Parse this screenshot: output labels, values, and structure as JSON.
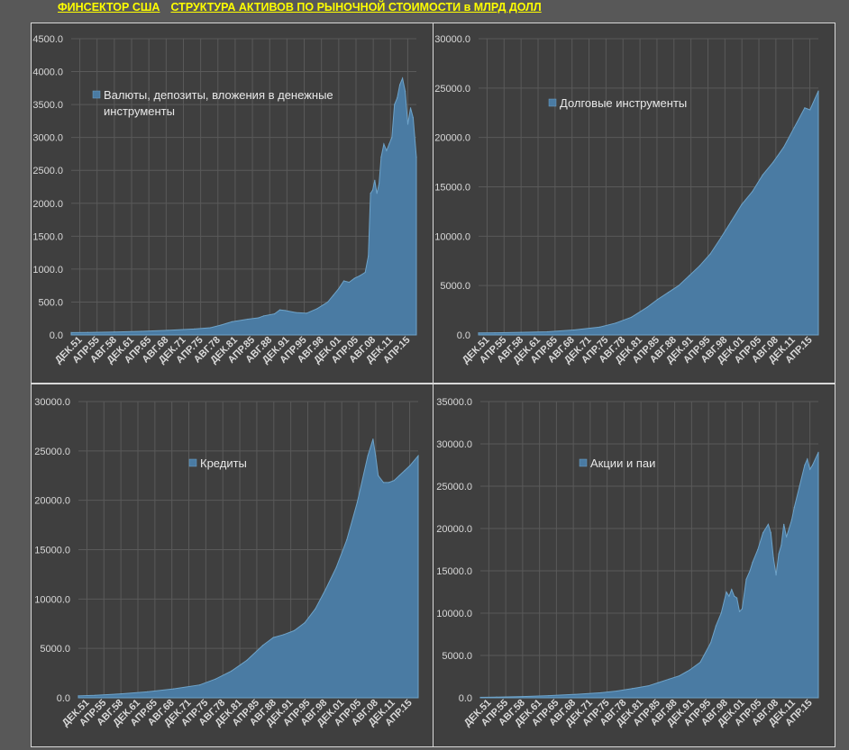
{
  "header": {
    "title_left": "ФИНСЕКТОР США",
    "title_right": "СТРУКТУРА АКТИВОВ ПО РЫНОЧНОЙ СТОИМОСТИ в МЛРД ДОЛЛ"
  },
  "colors": {
    "area": "#4a7ba3",
    "area_edge": "#6ea3c9",
    "grid": "#5a5a5a",
    "panel_bg": "#3f3f3f"
  },
  "chart_data": [
    {
      "type": "area",
      "legend": [
        "Валюты, депозиты, вложения в денежные",
        "инструменты"
      ],
      "ylim": [
        0,
        4500
      ],
      "yticks": [
        "0.0",
        "500.0",
        "1000.0",
        "1500.0",
        "2000.0",
        "2500.0",
        "3000.0",
        "3500.0",
        "4000.0",
        "4500.0"
      ],
      "xticks": [
        "ДЕК.51",
        "АПР.55",
        "АВГ.58",
        "ДЕК.61",
        "АПР.65",
        "АВГ.68",
        "ДЕК.71",
        "АПР.75",
        "АВГ.78",
        "ДЕК.81",
        "АПР.85",
        "АВГ.88",
        "ДЕК.91",
        "АПР.95",
        "АВГ.98",
        "ДЕК.01",
        "АПР.05",
        "АВГ.08",
        "ДЕК.11",
        "АПР.15"
      ],
      "x": [
        1951.9,
        1955,
        1960,
        1965,
        1970,
        1975,
        1978,
        1980,
        1982,
        1985,
        1987,
        1988,
        1990,
        1991,
        1992,
        1994,
        1996,
        1998,
        2000,
        2001,
        2002,
        2003,
        2004,
        2005,
        2006,
        2007,
        2007.6,
        2008,
        2008.4,
        2008.8,
        2009.2,
        2009.6,
        2010,
        2010.5,
        2011,
        2011.5,
        2012,
        2012.5,
        2013,
        2013.5,
        2014,
        2014.5,
        2015,
        2015.5,
        2016,
        2016.6
      ],
      "values": [
        35,
        38,
        45,
        55,
        70,
        90,
        110,
        150,
        200,
        240,
        260,
        290,
        320,
        380,
        370,
        340,
        330,
        400,
        500,
        600,
        700,
        820,
        800,
        860,
        900,
        950,
        1200,
        2150,
        2200,
        2350,
        2150,
        2300,
        2700,
        2900,
        2800,
        2900,
        3000,
        3500,
        3600,
        3800,
        3900,
        3700,
        3200,
        3450,
        3300,
        2700
      ]
    },
    {
      "type": "area",
      "legend": [
        "Долговые инструменты"
      ],
      "ylim": [
        0,
        30000
      ],
      "yticks": [
        "0.0",
        "5000.0",
        "10000.0",
        "15000.0",
        "20000.0",
        "25000.0",
        "30000.0"
      ],
      "xticks": [
        "ДЕК.51",
        "АПР.55",
        "АВГ.58",
        "ДЕК.61",
        "АПР.65",
        "АВГ.68",
        "ДЕК.71",
        "АПР.75",
        "АВГ.78",
        "ДЕК.81",
        "АПР.85",
        "АВГ.88",
        "ДЕК.91",
        "АПР.95",
        "АВГ.98",
        "ДЕК.01",
        "АПР.05",
        "АВГ.08",
        "ДЕК.11",
        "АПР.15"
      ],
      "x": [
        1951.9,
        1955,
        1960,
        1965,
        1970,
        1975,
        1978,
        1981,
        1984,
        1986,
        1988,
        1990,
        1992,
        1994,
        1996,
        1998,
        2000,
        2002,
        2004,
        2006,
        2008,
        2010,
        2012,
        2014,
        2015,
        2016.6
      ],
      "values": [
        200,
        220,
        260,
        320,
        500,
        800,
        1200,
        1800,
        2800,
        3600,
        4300,
        5000,
        6000,
        7000,
        8200,
        9800,
        11500,
        13200,
        14500,
        16200,
        17500,
        19000,
        21000,
        23000,
        22800,
        24700
      ]
    },
    {
      "type": "area",
      "legend": [
        "Кредиты"
      ],
      "ylim": [
        0,
        30000
      ],
      "yticks": [
        "0.0",
        "5000.0",
        "10000.0",
        "15000.0",
        "20000.0",
        "25000.0",
        "30000.0"
      ],
      "xticks": [
        "ДЕК.51",
        "АПР.55",
        "АВГ.58",
        "ДЕК.61",
        "АПР.65",
        "АВГ.68",
        "ДЕК.71",
        "АПР.75",
        "АВГ.78",
        "ДЕК.81",
        "АПР.85",
        "АВГ.88",
        "ДЕК.91",
        "АПР.95",
        "АВГ.98",
        "ДЕК.01",
        "АПР.05",
        "АВГ.08",
        "ДЕК.11",
        "АПР.15"
      ],
      "x": [
        1951.9,
        1955,
        1960,
        1965,
        1970,
        1975,
        1978,
        1981,
        1984,
        1987,
        1989,
        1991,
        1993,
        1995,
        1997,
        1999,
        2001,
        2003,
        2005,
        2007,
        2008,
        2008.5,
        2009,
        2010,
        2011,
        2012,
        2013,
        2014,
        2015,
        2016.6
      ],
      "values": [
        200,
        250,
        400,
        600,
        900,
        1300,
        1900,
        2700,
        3800,
        5300,
        6100,
        6400,
        6800,
        7600,
        9000,
        11000,
        13200,
        16000,
        19800,
        24500,
        26200,
        24500,
        22500,
        21800,
        21800,
        22000,
        22500,
        23000,
        23500,
        24500
      ]
    },
    {
      "type": "area",
      "legend": [
        "Акции и паи"
      ],
      "ylim": [
        0,
        35000
      ],
      "yticks": [
        "0.0",
        "5000.0",
        "10000.0",
        "15000.0",
        "20000.0",
        "25000.0",
        "30000.0",
        "35000.0"
      ],
      "xticks": [
        "ДЕК.51",
        "АПР.55",
        "АВГ.58",
        "ДЕК.61",
        "АПР.65",
        "АВГ.68",
        "ДЕК.71",
        "АПР.75",
        "АВГ.78",
        "ДЕК.81",
        "АПР.85",
        "АВГ.88",
        "ДЕК.91",
        "АПР.95",
        "АВГ.98",
        "ДЕК.01",
        "АПР.05",
        "АВГ.08",
        "ДЕК.11",
        "АПР.15"
      ],
      "x": [
        1951.9,
        1955,
        1960,
        1965,
        1970,
        1975,
        1978,
        1981,
        1984,
        1986,
        1988,
        1990,
        1992,
        1994,
        1996,
        1997,
        1998,
        1999,
        1999.5,
        2000,
        2000.5,
        2001,
        2001.5,
        2002,
        2002.8,
        2003.5,
        2004,
        2005,
        2006,
        2007,
        2007.5,
        2008,
        2008.5,
        2009,
        2009.5,
        2010,
        2010.5,
        2011,
        2011.5,
        2012,
        2013,
        2014,
        2014.5,
        2015,
        2015.5,
        2016.6
      ],
      "values": [
        50,
        80,
        150,
        250,
        400,
        600,
        800,
        1100,
        1400,
        1800,
        2200,
        2600,
        3300,
        4200,
        6500,
        8500,
        10000,
        12500,
        12000,
        12800,
        12000,
        11800,
        10200,
        10500,
        14000,
        15000,
        16000,
        17500,
        19500,
        20500,
        19500,
        16500,
        14500,
        17000,
        18000,
        20500,
        19000,
        20000,
        21000,
        22500,
        25000,
        27500,
        28200,
        27000,
        27500,
        29000
      ]
    }
  ]
}
